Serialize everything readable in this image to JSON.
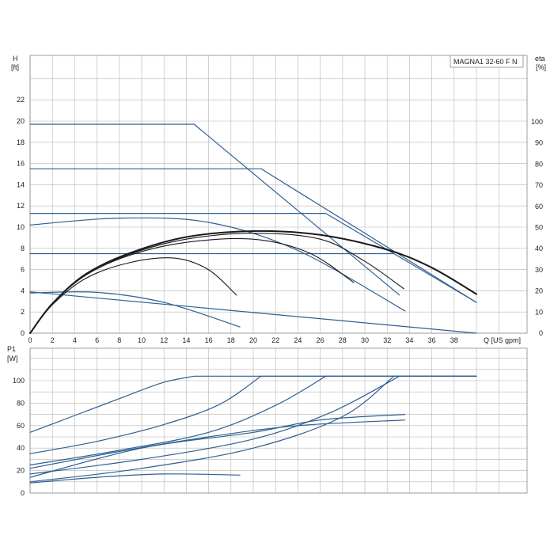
{
  "chart_data": [
    {
      "type": "line",
      "title": "MAGNA1 32-60 F N",
      "xlabel": "Q [US gpm]",
      "ylabel": "H",
      "ylabel_unit": "[ft]",
      "y2label": "eta",
      "y2label_unit": "[%]",
      "xlim": [
        0,
        42
      ],
      "ylim": [
        0,
        24
      ],
      "y2lim": [
        0,
        110
      ],
      "x_ticks": [
        "0",
        "2",
        "4",
        "6",
        "8",
        "10",
        "12",
        "14",
        "16",
        "18",
        "20",
        "22",
        "24",
        "26",
        "28",
        "30",
        "32",
        "34",
        "36",
        "38"
      ],
      "y_ticks": [
        "0",
        "2",
        "4",
        "6",
        "8",
        "10",
        "12",
        "14",
        "16",
        "18",
        "20",
        "22"
      ],
      "y2_ticks": [
        "0",
        "10",
        "20",
        "30",
        "40",
        "50",
        "60",
        "70",
        "80",
        "90",
        "100"
      ],
      "grid": true,
      "colors": {
        "head": "#2e5f92",
        "efficiency": "#1a1a1a"
      },
      "series": [
        {
          "kind": "head",
          "x": [
            0,
            14.7,
            33.1
          ],
          "y": [
            19.7,
            19.7,
            3.6
          ]
        },
        {
          "kind": "head",
          "x": [
            0,
            20.7,
            40.0
          ],
          "y": [
            15.5,
            15.5,
            2.9
          ]
        },
        {
          "kind": "head",
          "x": [
            0,
            26.5,
            40.0
          ],
          "y": [
            11.3,
            11.3,
            2.9
          ]
        },
        {
          "kind": "head",
          "x": [
            0,
            8,
            16,
            24,
            33.6
          ],
          "y": [
            10.2,
            10.85,
            10.45,
            7.8,
            2.1
          ]
        },
        {
          "kind": "head",
          "x": [
            0,
            32.6
          ],
          "y": [
            7.5,
            7.5
          ]
        },
        {
          "kind": "head",
          "x": [
            0,
            6,
            12,
            18.8
          ],
          "y": [
            3.8,
            3.85,
            2.9,
            0.6
          ]
        },
        {
          "kind": "head",
          "x": [
            0,
            40.0
          ],
          "y": [
            3.9,
            0.0
          ]
        },
        {
          "kind": "efficiency",
          "x": [
            0,
            2,
            5,
            9,
            14,
            20,
            26,
            32,
            36,
            40.0
          ],
          "y": [
            0,
            14,
            28,
            38,
            45.5,
            48.3,
            46.5,
            39.5,
            31,
            18.5
          ]
        },
        {
          "kind": "efficiency",
          "x": [
            0,
            2,
            5,
            9,
            14,
            20,
            26,
            30,
            33.5
          ],
          "y": [
            0,
            14,
            28,
            37.5,
            44.5,
            47.3,
            44.5,
            34,
            21
          ]
        },
        {
          "kind": "efficiency",
          "x": [
            0,
            2,
            5,
            9,
            14,
            20,
            25,
            29
          ],
          "y": [
            0,
            14,
            27.5,
            37,
            43,
            44.5,
            38,
            24
          ]
        },
        {
          "kind": "efficiency",
          "x": [
            0,
            2,
            5,
            9,
            13,
            16,
            18.5
          ],
          "y": [
            0,
            13.5,
            26,
            33.5,
            35.5,
            30,
            18
          ]
        }
      ]
    },
    {
      "type": "line",
      "xlabel": "",
      "ylabel": "P1",
      "ylabel_unit": "[W]",
      "xlim": [
        0,
        42
      ],
      "ylim": [
        0,
        110
      ],
      "y_ticks": [
        "0",
        "20",
        "40",
        "60",
        "80",
        "100"
      ],
      "grid": true,
      "colors": {
        "power": "#2e5f92"
      },
      "series": [
        {
          "x": [
            0,
            4,
            8,
            11.8,
            14.7,
            40.0
          ],
          "y": [
            54,
            69,
            84,
            98,
            104,
            104
          ]
        },
        {
          "x": [
            0,
            6,
            12,
            17,
            20.7,
            40.0
          ],
          "y": [
            35,
            46,
            61,
            79,
            104,
            104
          ]
        },
        {
          "x": [
            0,
            8,
            16,
            22,
            26.5,
            40.0
          ],
          "y": [
            25,
            38,
            54,
            78,
            104,
            104
          ]
        },
        {
          "x": [
            0,
            10,
            20,
            27,
            33.1,
            40.0
          ],
          "y": [
            17,
            30,
            48,
            72,
            104,
            104
          ]
        },
        {
          "x": [
            0,
            10,
            20,
            28,
            32.6,
            40.0
          ],
          "y": [
            10,
            22,
            40,
            68,
            104,
            104
          ]
        },
        {
          "x": [
            0,
            8,
            16,
            24,
            33.6
          ],
          "y": [
            22,
            37,
            50,
            60,
            65
          ]
        },
        {
          "x": [
            0,
            10,
            20,
            26,
            33.6
          ],
          "y": [
            14,
            40,
            54,
            65,
            70
          ]
        },
        {
          "x": [
            0,
            6,
            12,
            18.8
          ],
          "y": [
            9,
            14,
            17,
            16
          ]
        }
      ]
    }
  ]
}
